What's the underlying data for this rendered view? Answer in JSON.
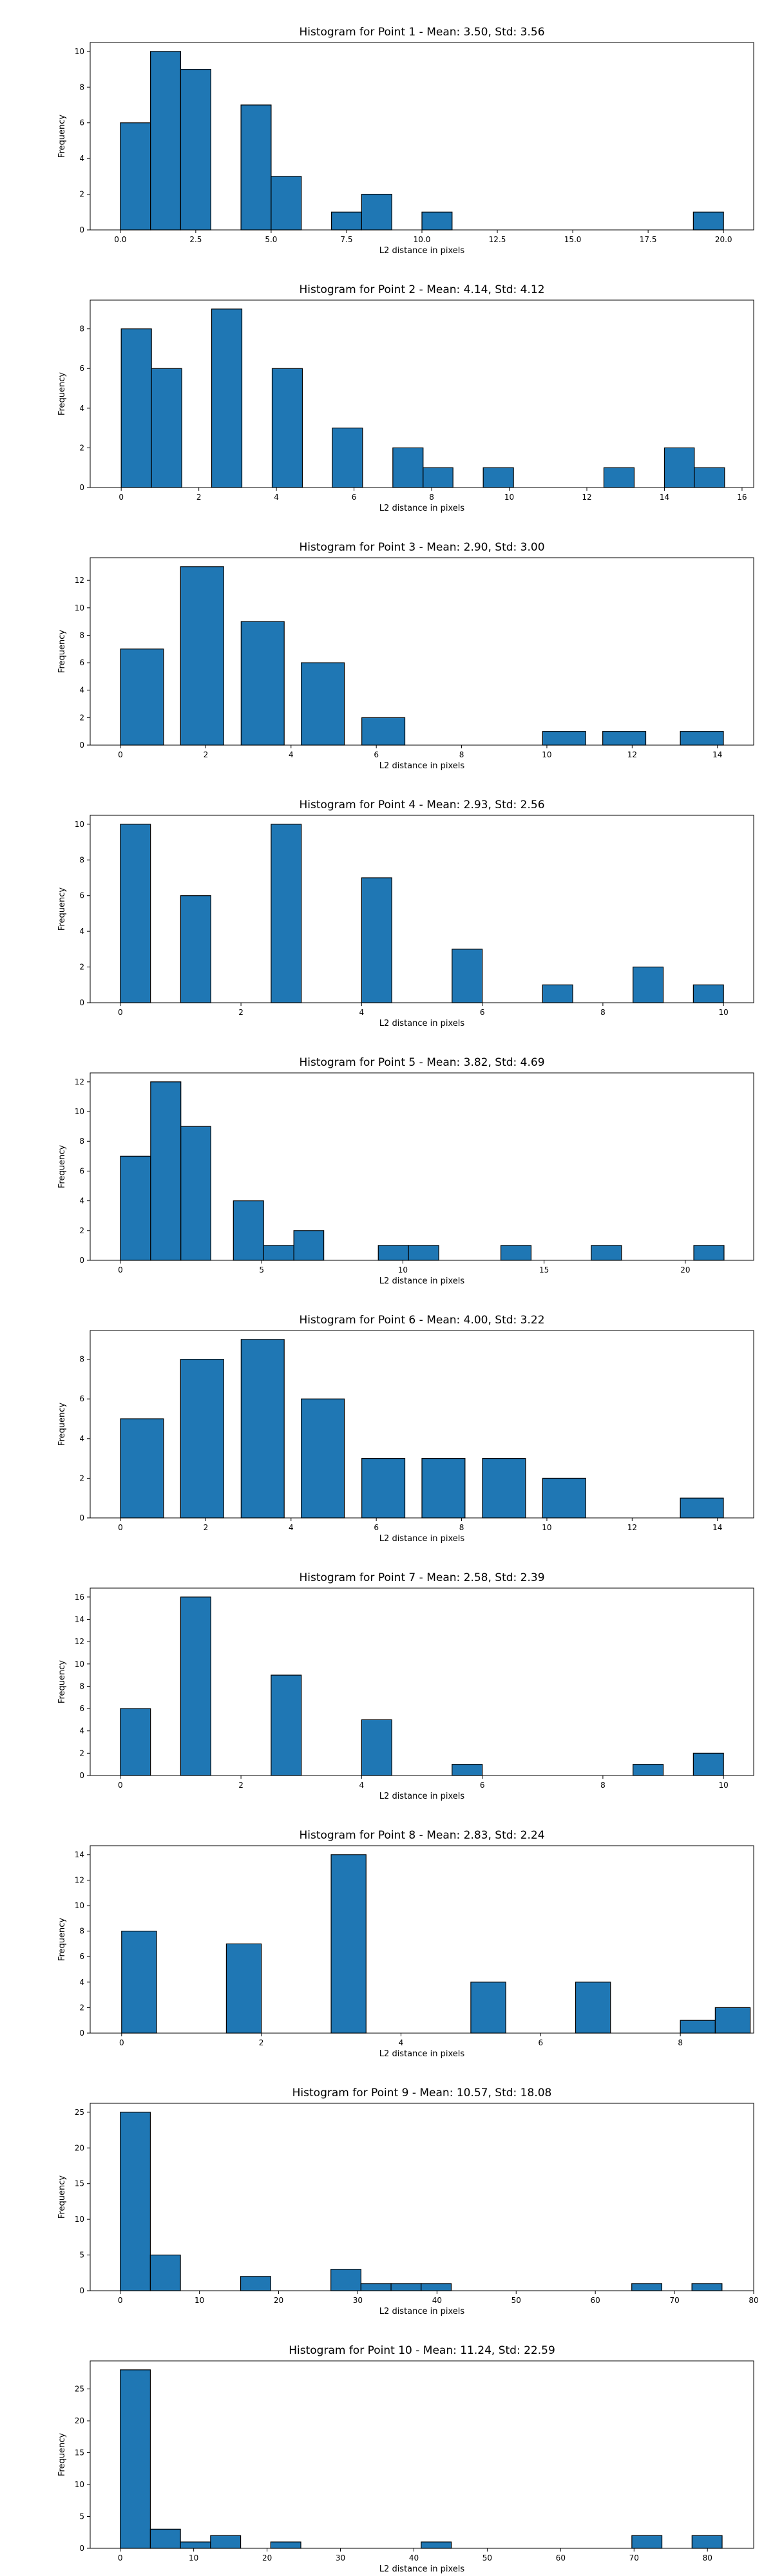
{
  "chart_data": [
    {
      "type": "bar",
      "title": "Histogram for Point 1 - Mean: 3.50, Std: 3.56",
      "xlabel": "L2 distance in pixels",
      "ylabel": "Frequency",
      "xlim": [
        -1.0,
        21.0
      ],
      "ylim": [
        0,
        10.5
      ],
      "xticks": [
        0.0,
        2.5,
        5.0,
        7.5,
        10.0,
        12.5,
        15.0,
        17.5,
        20.0
      ],
      "xtick_labels": [
        "0.0",
        "2.5",
        "5.0",
        "7.5",
        "10.0",
        "12.5",
        "15.0",
        "17.5",
        "20.0"
      ],
      "yticks": [
        0,
        2,
        4,
        6,
        8,
        10
      ],
      "ytick_labels": [
        "0",
        "2",
        "4",
        "6",
        "8",
        "10"
      ],
      "bins": [
        {
          "x0": 0.0,
          "x1": 1.0,
          "count": 6
        },
        {
          "x0": 1.0,
          "x1": 2.0,
          "count": 10
        },
        {
          "x0": 2.0,
          "x1": 3.0,
          "count": 9
        },
        {
          "x0": 4.0,
          "x1": 5.0,
          "count": 7
        },
        {
          "x0": 5.0,
          "x1": 6.0,
          "count": 3
        },
        {
          "x0": 7.0,
          "x1": 8.0,
          "count": 1
        },
        {
          "x0": 8.0,
          "x1": 9.0,
          "count": 2
        },
        {
          "x0": 10.0,
          "x1": 11.0,
          "count": 1
        },
        {
          "x0": 19.0,
          "x1": 20.0,
          "count": 1
        }
      ]
    },
    {
      "type": "bar",
      "title": "Histogram for Point 2 - Mean: 4.14, Std: 4.12",
      "xlabel": "L2 distance in pixels",
      "ylabel": "Frequency",
      "xlim": [
        -0.8,
        16.3
      ],
      "ylim": [
        0,
        9.45
      ],
      "xticks": [
        0,
        2,
        4,
        6,
        8,
        10,
        12,
        14,
        16
      ],
      "xtick_labels": [
        "0",
        "2",
        "4",
        "6",
        "8",
        "10",
        "12",
        "14",
        "16"
      ],
      "yticks": [
        0,
        2,
        4,
        6,
        8
      ],
      "ytick_labels": [
        "0",
        "2",
        "4",
        "6",
        "8"
      ],
      "bins": [
        {
          "x0": 0.0,
          "x1": 0.78,
          "count": 8
        },
        {
          "x0": 0.78,
          "x1": 1.56,
          "count": 6
        },
        {
          "x0": 2.33,
          "x1": 3.11,
          "count": 9
        },
        {
          "x0": 3.89,
          "x1": 4.67,
          "count": 6
        },
        {
          "x0": 5.44,
          "x1": 6.22,
          "count": 3
        },
        {
          "x0": 7.0,
          "x1": 7.78,
          "count": 2
        },
        {
          "x0": 7.78,
          "x1": 8.55,
          "count": 1
        },
        {
          "x0": 9.33,
          "x1": 10.11,
          "count": 1
        },
        {
          "x0": 12.44,
          "x1": 13.22,
          "count": 1
        },
        {
          "x0": 14.0,
          "x1": 14.77,
          "count": 2
        },
        {
          "x0": 14.77,
          "x1": 15.55,
          "count": 1
        }
      ]
    },
    {
      "type": "bar",
      "title": "Histogram for Point 3 - Mean: 2.90, Std: 3.00",
      "xlabel": "L2 distance in pixels",
      "ylabel": "Frequency",
      "xlim": [
        -0.71,
        14.85
      ],
      "ylim": [
        0,
        13.65
      ],
      "xticks": [
        0,
        2,
        4,
        6,
        8,
        10,
        12,
        14
      ],
      "xtick_labels": [
        "0",
        "2",
        "4",
        "6",
        "8",
        "10",
        "12",
        "14"
      ],
      "yticks": [
        0,
        2,
        4,
        6,
        8,
        10,
        12
      ],
      "ytick_labels": [
        "0",
        "2",
        "4",
        "6",
        "8",
        "10",
        "12"
      ],
      "bins": [
        {
          "x0": 0.0,
          "x1": 1.01,
          "count": 7
        },
        {
          "x0": 1.41,
          "x1": 2.42,
          "count": 13
        },
        {
          "x0": 2.83,
          "x1": 3.84,
          "count": 9
        },
        {
          "x0": 4.24,
          "x1": 5.25,
          "count": 6
        },
        {
          "x0": 5.66,
          "x1": 6.67,
          "count": 2
        },
        {
          "x0": 9.9,
          "x1": 10.91,
          "count": 1
        },
        {
          "x0": 11.31,
          "x1": 12.32,
          "count": 1
        },
        {
          "x0": 13.13,
          "x1": 14.14,
          "count": 1
        }
      ]
    },
    {
      "type": "bar",
      "title": "Histogram for Point 4 - Mean: 2.93, Std: 2.56",
      "xlabel": "L2 distance in pixels",
      "ylabel": "Frequency",
      "xlim": [
        -0.5,
        10.5
      ],
      "ylim": [
        0,
        10.5
      ],
      "xticks": [
        0,
        2,
        4,
        6,
        8,
        10
      ],
      "xtick_labels": [
        "0",
        "2",
        "4",
        "6",
        "8",
        "10"
      ],
      "yticks": [
        0,
        2,
        4,
        6,
        8,
        10
      ],
      "ytick_labels": [
        "0",
        "2",
        "4",
        "6",
        "8",
        "10"
      ],
      "bins": [
        {
          "x0": 0.0,
          "x1": 0.5,
          "count": 10
        },
        {
          "x0": 1.0,
          "x1": 1.5,
          "count": 6
        },
        {
          "x0": 2.5,
          "x1": 3.0,
          "count": 10
        },
        {
          "x0": 4.0,
          "x1": 4.5,
          "count": 7
        },
        {
          "x0": 5.5,
          "x1": 6.0,
          "count": 3
        },
        {
          "x0": 7.0,
          "x1": 7.5,
          "count": 1
        },
        {
          "x0": 8.5,
          "x1": 9.0,
          "count": 2
        },
        {
          "x0": 9.5,
          "x1": 10.0,
          "count": 1
        }
      ]
    },
    {
      "type": "bar",
      "title": "Histogram for Point 5 - Mean: 3.82, Std: 4.69",
      "xlabel": "L2 distance in pixels",
      "ylabel": "Frequency",
      "xlim": [
        -1.07,
        22.42
      ],
      "ylim": [
        0,
        12.6
      ],
      "xticks": [
        0,
        5,
        10,
        15,
        20
      ],
      "xtick_labels": [
        "0",
        "5",
        "10",
        "15",
        "20"
      ],
      "yticks": [
        0,
        2,
        4,
        6,
        8,
        10,
        12
      ],
      "ytick_labels": [
        "0",
        "2",
        "4",
        "6",
        "8",
        "10",
        "12"
      ],
      "bins": [
        {
          "x0": 0.0,
          "x1": 1.07,
          "count": 7
        },
        {
          "x0": 1.07,
          "x1": 2.14,
          "count": 12
        },
        {
          "x0": 2.14,
          "x1": 3.2,
          "count": 9
        },
        {
          "x0": 4.0,
          "x1": 5.07,
          "count": 4
        },
        {
          "x0": 5.07,
          "x1": 6.14,
          "count": 1
        },
        {
          "x0": 6.14,
          "x1": 7.2,
          "count": 2
        },
        {
          "x0": 9.13,
          "x1": 10.2,
          "count": 1
        },
        {
          "x0": 10.2,
          "x1": 11.27,
          "count": 1
        },
        {
          "x0": 13.47,
          "x1": 14.54,
          "count": 1
        },
        {
          "x0": 16.67,
          "x1": 17.74,
          "count": 1
        },
        {
          "x0": 20.3,
          "x1": 21.37,
          "count": 1
        }
      ]
    },
    {
      "type": "bar",
      "title": "Histogram for Point 6 - Mean: 4.00, Std: 3.22",
      "xlabel": "L2 distance in pixels",
      "ylabel": "Frequency",
      "xlim": [
        -0.71,
        14.85
      ],
      "ylim": [
        0,
        9.45
      ],
      "xticks": [
        0,
        2,
        4,
        6,
        8,
        10,
        12,
        14
      ],
      "xtick_labels": [
        "0",
        "2",
        "4",
        "6",
        "8",
        "10",
        "12",
        "14"
      ],
      "yticks": [
        0,
        2,
        4,
        6,
        8
      ],
      "ytick_labels": [
        "0",
        "2",
        "4",
        "6",
        "8"
      ],
      "bins": [
        {
          "x0": 0.0,
          "x1": 1.01,
          "count": 5
        },
        {
          "x0": 1.41,
          "x1": 2.42,
          "count": 8
        },
        {
          "x0": 2.83,
          "x1": 3.84,
          "count": 9
        },
        {
          "x0": 4.24,
          "x1": 5.25,
          "count": 6
        },
        {
          "x0": 5.66,
          "x1": 6.67,
          "count": 3
        },
        {
          "x0": 7.07,
          "x1": 8.08,
          "count": 3
        },
        {
          "x0": 8.49,
          "x1": 9.5,
          "count": 3
        },
        {
          "x0": 9.9,
          "x1": 10.91,
          "count": 2
        },
        {
          "x0": 13.13,
          "x1": 14.14,
          "count": 1
        }
      ]
    },
    {
      "type": "bar",
      "title": "Histogram for Point 7 - Mean: 2.58, Std: 2.39",
      "xlabel": "L2 distance in pixels",
      "ylabel": "Frequency",
      "xlim": [
        -0.5,
        10.5
      ],
      "ylim": [
        0,
        16.8
      ],
      "xticks": [
        0,
        2,
        4,
        6,
        8,
        10
      ],
      "xtick_labels": [
        "0",
        "2",
        "4",
        "6",
        "8",
        "10"
      ],
      "yticks": [
        0,
        2,
        4,
        6,
        8,
        10,
        12,
        14,
        16
      ],
      "ytick_labels": [
        "0",
        "2",
        "4",
        "6",
        "8",
        "10",
        "12",
        "14",
        "16"
      ],
      "bins": [
        {
          "x0": 0.0,
          "x1": 0.5,
          "count": 6
        },
        {
          "x0": 1.0,
          "x1": 1.5,
          "count": 16
        },
        {
          "x0": 2.5,
          "x1": 3.0,
          "count": 9
        },
        {
          "x0": 4.0,
          "x1": 4.5,
          "count": 5
        },
        {
          "x0": 5.5,
          "x1": 6.0,
          "count": 1
        },
        {
          "x0": 8.5,
          "x1": 9.0,
          "count": 1
        },
        {
          "x0": 9.5,
          "x1": 10.0,
          "count": 2
        }
      ]
    },
    {
      "type": "bar",
      "title": "Histogram for Point 8 - Mean: 2.83, Std: 2.24",
      "xlabel": "L2 distance in pixels",
      "ylabel": "Frequency",
      "xlim": [
        -0.45,
        9.05
      ],
      "ylim": [
        0,
        14.7
      ],
      "xticks": [
        0,
        2,
        4,
        6,
        8
      ],
      "xtick_labels": [
        "0",
        "2",
        "4",
        "6",
        "8"
      ],
      "yticks": [
        0,
        2,
        4,
        6,
        8,
        10,
        12,
        14
      ],
      "ytick_labels": [
        "0",
        "2",
        "4",
        "6",
        "8",
        "10",
        "12",
        "14"
      ],
      "bins": [
        {
          "x0": 0.0,
          "x1": 0.5,
          "count": 8
        },
        {
          "x0": 1.5,
          "x1": 2.0,
          "count": 7
        },
        {
          "x0": 3.0,
          "x1": 3.5,
          "count": 14
        },
        {
          "x0": 5.0,
          "x1": 5.5,
          "count": 4
        },
        {
          "x0": 6.5,
          "x1": 7.0,
          "count": 4
        },
        {
          "x0": 8.0,
          "x1": 8.5,
          "count": 1
        },
        {
          "x0": 8.5,
          "x1": 9.0,
          "count": 2
        }
      ]
    },
    {
      "type": "bar",
      "title": "Histogram for Point 9 - Mean: 10.57, Std: 18.08",
      "xlabel": "L2 distance in pixels",
      "ylabel": "Frequency",
      "xlim": [
        -3.8,
        80.0
      ],
      "ylim": [
        0,
        26.25
      ],
      "xticks": [
        0,
        10,
        20,
        30,
        40,
        50,
        60,
        70,
        80
      ],
      "xtick_labels": [
        "0",
        "10",
        "20",
        "30",
        "40",
        "50",
        "60",
        "70",
        "80"
      ],
      "yticks": [
        0,
        5,
        10,
        15,
        20,
        25
      ],
      "ytick_labels": [
        "0",
        "5",
        "10",
        "15",
        "20",
        "25"
      ],
      "bins": [
        {
          "x0": 0.0,
          "x1": 3.8,
          "count": 25
        },
        {
          "x0": 3.8,
          "x1": 7.6,
          "count": 5
        },
        {
          "x0": 15.2,
          "x1": 19.0,
          "count": 2
        },
        {
          "x0": 26.6,
          "x1": 30.4,
          "count": 3
        },
        {
          "x0": 30.4,
          "x1": 34.2,
          "count": 1
        },
        {
          "x0": 34.2,
          "x1": 38.0,
          "count": 1
        },
        {
          "x0": 38.0,
          "x1": 41.8,
          "count": 1
        },
        {
          "x0": 64.6,
          "x1": 68.4,
          "count": 1
        },
        {
          "x0": 72.2,
          "x1": 76.0,
          "count": 1
        }
      ]
    },
    {
      "type": "bar",
      "title": "Histogram for Point 10 - Mean: 11.24, Std: 22.59",
      "xlabel": "L2 distance in pixels",
      "ylabel": "Frequency",
      "xlim": [
        -4.1,
        86.3
      ],
      "ylim": [
        0,
        29.4
      ],
      "xticks": [
        0,
        10,
        20,
        30,
        40,
        50,
        60,
        70,
        80
      ],
      "xtick_labels": [
        "0",
        "10",
        "20",
        "30",
        "40",
        "50",
        "60",
        "70",
        "80"
      ],
      "yticks": [
        0,
        5,
        10,
        15,
        20,
        25
      ],
      "ytick_labels": [
        "0",
        "5",
        "10",
        "15",
        "20",
        "25"
      ],
      "bins": [
        {
          "x0": 0.0,
          "x1": 4.1,
          "count": 28
        },
        {
          "x0": 4.1,
          "x1": 8.2,
          "count": 3
        },
        {
          "x0": 8.2,
          "x1": 12.3,
          "count": 1
        },
        {
          "x0": 12.3,
          "x1": 16.4,
          "count": 2
        },
        {
          "x0": 20.5,
          "x1": 24.6,
          "count": 1
        },
        {
          "x0": 41.0,
          "x1": 45.1,
          "count": 1
        },
        {
          "x0": 69.7,
          "x1": 73.8,
          "count": 2
        },
        {
          "x0": 77.9,
          "x1": 82.0,
          "count": 2
        }
      ]
    }
  ]
}
